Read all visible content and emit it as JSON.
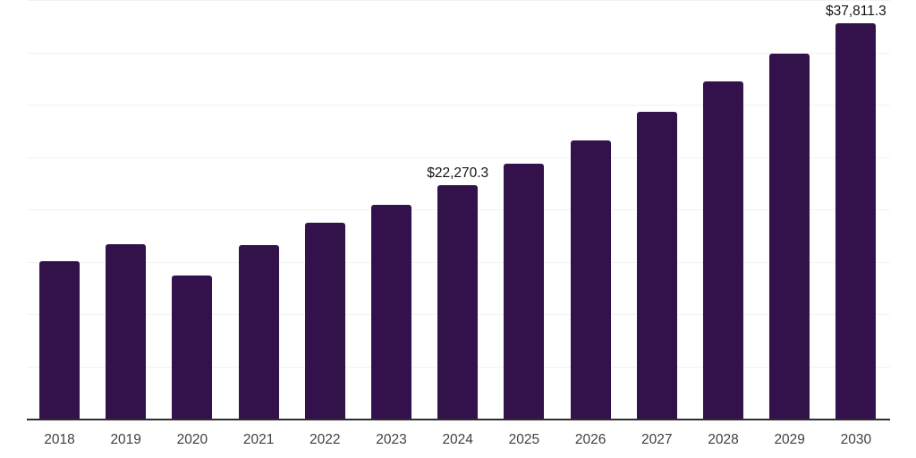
{
  "chart_data": {
    "type": "bar",
    "title": "",
    "xlabel": "",
    "ylabel": "",
    "categories": [
      "2018",
      "2019",
      "2020",
      "2021",
      "2022",
      "2023",
      "2024",
      "2025",
      "2026",
      "2027",
      "2028",
      "2029",
      "2030"
    ],
    "values": [
      15050,
      16700,
      13700,
      16600,
      18700,
      20400,
      22270.3,
      24350,
      26600,
      29300,
      32200,
      34900,
      37811.3
    ],
    "value_labels": [
      "",
      "",
      "",
      "",
      "",
      "",
      "$22,270.3",
      "",
      "",
      "",
      "",
      "",
      "$37,811.3"
    ],
    "ylim": [
      0,
      40000
    ],
    "gridline_step": 5000,
    "grid": true,
    "legend": false,
    "colors": {
      "bar": "#33114a",
      "axis_line": "#2e2e2e",
      "gridline": "#f2f2f2",
      "x_tick_label": "#404040",
      "data_label": "#141414",
      "background": "#ffffff"
    }
  }
}
